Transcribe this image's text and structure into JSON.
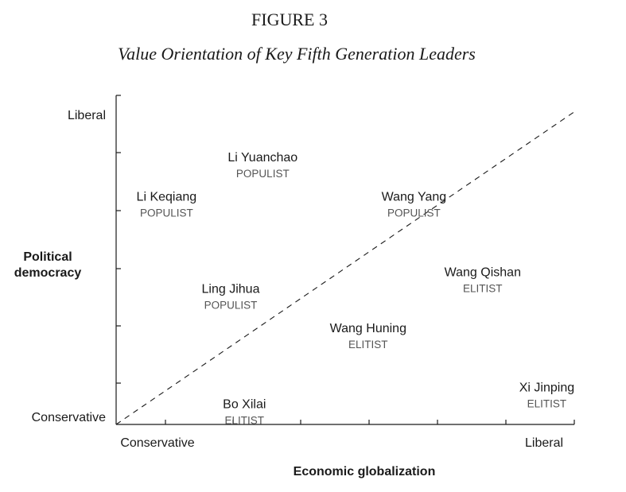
{
  "chart_data": {
    "type": "scatter",
    "figure_label": "FIGURE 3",
    "title": "Value Orientation of Key Fifth Generation Leaders",
    "xlabel": "Economic globalization",
    "ylabel": "Political democracy",
    "x_tick_labels": {
      "low": "Conservative",
      "high": "Liberal"
    },
    "y_tick_labels": {
      "low": "Conservative",
      "high": "Liberal"
    },
    "xlim": [
      0,
      10
    ],
    "ylim": [
      0,
      10
    ],
    "diagonal_line": {
      "style": "dashed",
      "from": [
        0,
        0
      ],
      "to": [
        10,
        9.5
      ]
    },
    "points": [
      {
        "name": "Li Yuanchao",
        "type": "POPULIST",
        "x": 3.2,
        "y": 8.0
      },
      {
        "name": "Li Keqiang",
        "type": "POPULIST",
        "x": 1.1,
        "y": 6.8
      },
      {
        "name": "Wang Yang",
        "type": "POPULIST",
        "x": 6.5,
        "y": 6.8
      },
      {
        "name": "Ling Jihua",
        "type": "POPULIST",
        "x": 2.5,
        "y": 4.0
      },
      {
        "name": "Wang Qishan",
        "type": "ELITIST",
        "x": 8.0,
        "y": 4.5
      },
      {
        "name": "Wang Huning",
        "type": "ELITIST",
        "x": 5.5,
        "y": 2.8
      },
      {
        "name": "Bo Xilai",
        "type": "ELITIST",
        "x": 2.8,
        "y": 0.5
      },
      {
        "name": "Xi Jinping",
        "type": "ELITIST",
        "x": 9.4,
        "y": 1.0
      }
    ]
  }
}
